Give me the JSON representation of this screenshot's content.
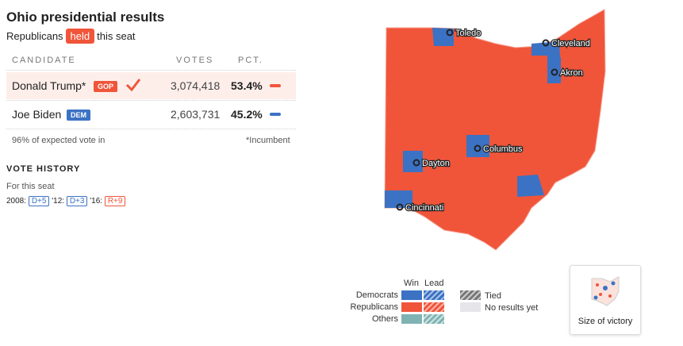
{
  "header": {
    "title": "Ohio presidential results",
    "lead": "Republicans",
    "badge": "held",
    "tail": "this seat"
  },
  "table": {
    "columns": [
      "CANDIDATE",
      "VOTES",
      "PCT."
    ],
    "rows": [
      {
        "name": "Donald Trump*",
        "party": "GOP",
        "votes": "3,074,418",
        "pct": "53.4%"
      },
      {
        "name": "Joe Biden",
        "party": "DEM",
        "votes": "2,603,731",
        "pct": "45.2%"
      }
    ]
  },
  "footer": {
    "reporting": "96% of expected vote in",
    "note": "*Incumbent"
  },
  "history": {
    "title": "VOTE HISTORY",
    "subtitle": "For this seat",
    "entries": [
      {
        "year": "2008:",
        "margin": "D+5"
      },
      {
        "year": "'12:",
        "margin": "D+3"
      },
      {
        "year": "'16:",
        "margin": "R+9"
      }
    ]
  },
  "map": {
    "cities": [
      "Toledo",
      "Cleveland",
      "Akron",
      "Columbus",
      "Dayton",
      "Cincinnati"
    ]
  },
  "legend": {
    "win": "Win",
    "lead": "Lead",
    "democrats": "Democrats",
    "republicans": "Republicans",
    "others": "Others",
    "tied": "Tied",
    "no_results": "No results yet"
  },
  "size_button": "Size of victory"
}
